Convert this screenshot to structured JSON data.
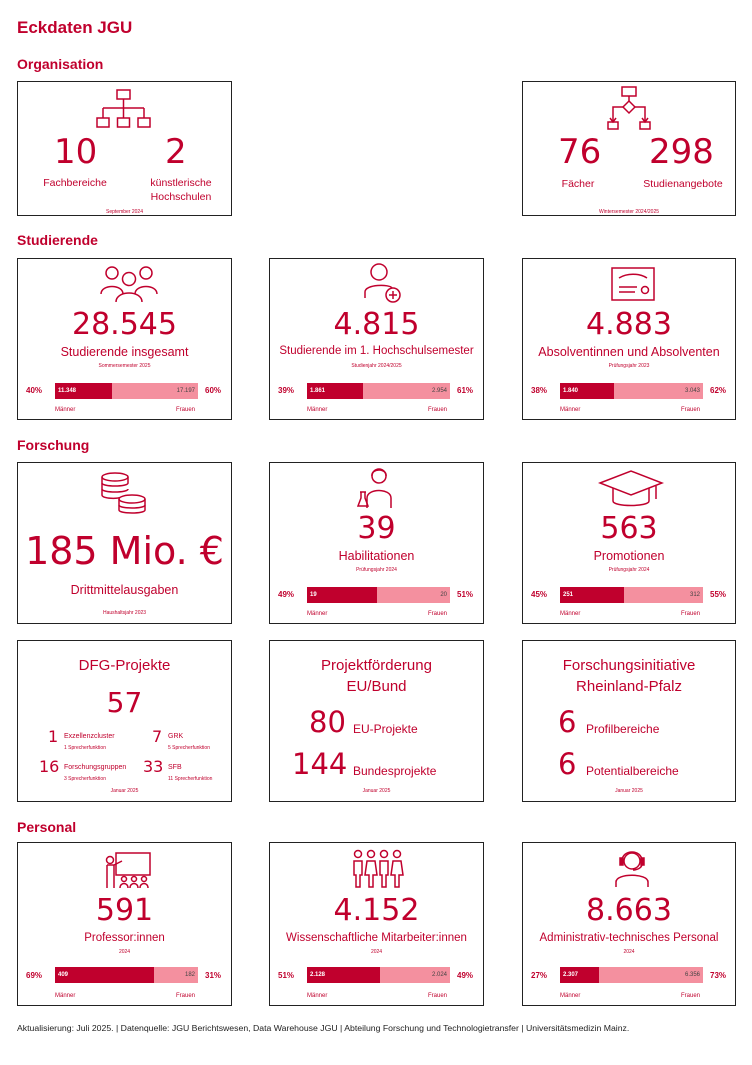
{
  "title": "Eckdaten JGU",
  "sections": {
    "organisation": "Organisation",
    "studierende": "Studierende",
    "forschung": "Forschung",
    "personal": "Personal"
  },
  "org1": {
    "num1": "10",
    "label1": "Fachbereiche",
    "num2": "2",
    "label2a": "künstlerische",
    "label2b": "Hochschulen",
    "date": "September 2024",
    "icon": "org-chart-icon"
  },
  "org2": {
    "num1": "76",
    "label1": "Fächer",
    "num2": "298",
    "label2": "Studienangebote",
    "date": "Wintersemester 2024/2025",
    "icon": "flowchart-icon"
  },
  "stud1": {
    "num": "28.545",
    "label": "Studierende insgesamt",
    "date": "Sommersemester 2025",
    "pct_m": "40%",
    "pct_f": "60%",
    "val_m": "11.348",
    "val_f": "17.197",
    "m": "Männer",
    "f": "Frauen",
    "share_m": 0.4,
    "icon": "people-group-icon"
  },
  "stud2": {
    "num": "4.815",
    "label": "Studierende im 1. Hochschulsemester",
    "date": "Studienjahr 2024/2025",
    "pct_m": "39%",
    "pct_f": "61%",
    "val_m": "1.861",
    "val_f": "2.954",
    "m": "Männer",
    "f": "Frauen",
    "share_m": 0.39,
    "icon": "person-add-icon"
  },
  "stud3": {
    "num": "4.883",
    "label": "Absolventinnen und Absolventen",
    "date": "Prüfungsjahr 2023",
    "pct_m": "38%",
    "pct_f": "62%",
    "val_m": "1.840",
    "val_f": "3.043",
    "m": "Männer",
    "f": "Frauen",
    "share_m": 0.38,
    "icon": "certificate-icon"
  },
  "fo1": {
    "num": "185 Mio. €",
    "label": "Drittmittelausgaben",
    "date": "Haushaltsjahr 2023",
    "icon": "coins-icon"
  },
  "fo2": {
    "num": "39",
    "label": "Habilitationen",
    "date": "Prüfungsjahr 2024",
    "pct_m": "49%",
    "pct_f": "51%",
    "val_m": "19",
    "val_f": "20",
    "m": "Männer",
    "f": "Frauen",
    "share_m": 0.49,
    "icon": "scientist-icon"
  },
  "fo3": {
    "num": "563",
    "label": "Promotionen",
    "date": "Prüfungsjahr 2024",
    "pct_m": "45%",
    "pct_f": "55%",
    "val_m": "251",
    "val_f": "312",
    "m": "Männer",
    "f": "Frauen",
    "share_m": 0.45,
    "icon": "graduation-cap-icon"
  },
  "dfg": {
    "title": "DFG-Projekte",
    "total": "57",
    "a_num": "1",
    "a_lbl": "Exzellenzcluster",
    "a_sub": "1 Sprecherfunktion",
    "b_num": "7",
    "b_lbl": "GRK",
    "b_sub": "5 Sprecherfunktion",
    "c_num": "16",
    "c_lbl": "Forschungsgruppen",
    "c_sub": "3 Sprecherfunktion",
    "d_num": "33",
    "d_lbl": "SFB",
    "d_sub": "11 Sprecherfunktion",
    "date": "Januar 2025"
  },
  "eu": {
    "title1": "Projektförderung",
    "title2": "EU/Bund",
    "a_num": "80",
    "a_lbl": "EU-Projekte",
    "b_num": "144",
    "b_lbl": "Bundesprojekte",
    "date": "Januar 2025"
  },
  "fi": {
    "title1": "Forschungsinitiative",
    "title2": "Rheinland-Pfalz",
    "a_num": "6",
    "a_lbl": "Profilbereiche",
    "b_num": "6",
    "b_lbl": "Potentialbereiche",
    "date": "Januar 2025"
  },
  "pe1": {
    "num": "591",
    "label": "Professor:innen",
    "date": "2024",
    "pct_m": "69%",
    "pct_f": "31%",
    "val_m": "409",
    "val_f": "182",
    "m": "Männer",
    "f": "Frauen",
    "share_m": 0.69,
    "icon": "teacher-icon"
  },
  "pe2": {
    "num": "4.152",
    "label": "Wissenschaftliche Mitarbeiter:innen",
    "date": "2024",
    "pct_m": "51%",
    "pct_f": "49%",
    "val_m": "2.128",
    "val_f": "2.024",
    "m": "Männer",
    "f": "Frauen",
    "share_m": 0.51,
    "icon": "team-icon"
  },
  "pe3": {
    "num": "8.663",
    "label": "Administrativ-technisches Personal",
    "date": "2024",
    "pct_m": "27%",
    "pct_f": "73%",
    "val_m": "2.307",
    "val_f": "6.356",
    "m": "Männer",
    "f": "Frauen",
    "share_m": 0.27,
    "icon": "headset-icon"
  },
  "footer": "Aktualisierung: Juli 2025. | Datenquelle: JGU Berichtswesen, Data Warehouse JGU | Abteilung Forschung und Technologietransfer | Universitätsmedizin Mainz.",
  "colors": {
    "primary": "#c0002d",
    "secondary": "#f4909f"
  }
}
